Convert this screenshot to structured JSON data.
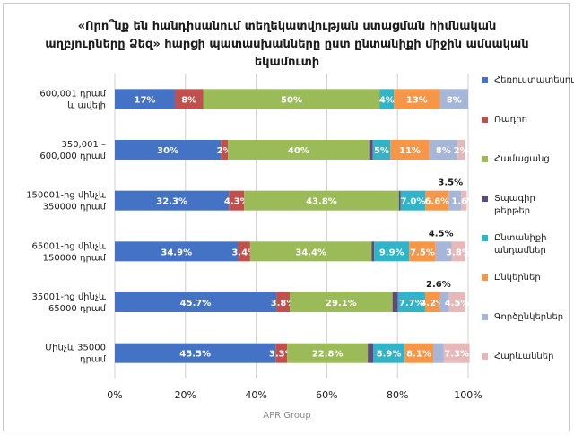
{
  "chart_data": {
    "type": "bar",
    "orientation": "horizontal",
    "stacked": "percent",
    "title": "«Որո՞նք են հանդիսանում տեղեկատվության ստացման հիմնական աղբյուրները Ձեզ» հարցի պատասխանները ըստ ընտանիքի միջին ամսական եկամուտի",
    "categories": [
      "600,001 դրամ և ավելի",
      "350,001 – 600,000 դրամ",
      "150001-ից մինչև 350000 դրամ",
      "65001-ից մինչև 150000 դրամ",
      "35001-ից մինչև 65000 դրամ",
      "Մինչև 35000 դրամ"
    ],
    "series": [
      {
        "name": "Հեռուստատեսություն",
        "color": "#4472c4",
        "values": [
          17,
          30,
          32.3,
          34.9,
          45.7,
          45.5
        ],
        "labels": [
          "17%",
          "30%",
          "32.3%",
          "34.9%",
          "45.7%",
          "45.5%"
        ]
      },
      {
        "name": "Ռադիո",
        "color": "#c0504d",
        "values": [
          8,
          2,
          4.3,
          3.4,
          3.8,
          3.3
        ],
        "labels": [
          "8%",
          "2%",
          "4.3%",
          "3.4%",
          "3.8%",
          "3.3%"
        ]
      },
      {
        "name": "Համացանց",
        "color": "#9bbb59",
        "values": [
          50,
          40,
          43.8,
          34.4,
          29.1,
          22.8
        ],
        "labels": [
          "50%",
          "40%",
          "43.8%",
          "34.4%",
          "29.1%",
          "22.8%"
        ]
      },
      {
        "name": "Տպագիր թերթեր",
        "color": "#604a7b",
        "values": [
          0,
          1,
          0.5,
          0.7,
          1.5,
          1.5
        ],
        "labels": [
          "",
          "",
          "",
          "",
          "",
          ""
        ]
      },
      {
        "name": "Ընտանիքի անդամներ",
        "color": "#31b3c8",
        "values": [
          4,
          5,
          7.0,
          9.9,
          7.7,
          8.9
        ],
        "labels": [
          "4%",
          "5%",
          "7.0%",
          "9.9%",
          "7.7%",
          "8.9%"
        ]
      },
      {
        "name": "Ընկերներ",
        "color": "#f79646",
        "values": [
          13,
          11,
          6.6,
          7.5,
          4.2,
          8.1
        ],
        "labels": [
          "13%",
          "11%",
          "6.6%",
          "7.5%",
          "4.2%",
          "8.1%"
        ]
      },
      {
        "name": "Գործընկերներ",
        "color": "#a5b6d9",
        "values": [
          8,
          8,
          3.5,
          4.5,
          2.6,
          3
        ],
        "labels": [
          "8%",
          "8%",
          "3.5%",
          "4.5%",
          "2.6%",
          ""
        ]
      },
      {
        "name": "Հարևաններ",
        "color": "#e6b9b8",
        "values": [
          0,
          2,
          1.6,
          3.8,
          4.5,
          7.3
        ],
        "labels": [
          "",
          "2%",
          "1.6%",
          "3.8%",
          "4.5%",
          "7.3%"
        ]
      }
    ],
    "xlim": [
      0,
      100
    ],
    "x_ticks": [
      "0%",
      "20%",
      "40%",
      "60%",
      "80%",
      "100%"
    ],
    "grid": true,
    "legend": "right"
  },
  "footer": "APR Group"
}
